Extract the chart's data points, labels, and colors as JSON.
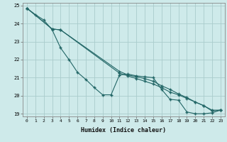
{
  "xlabel": "Humidex (Indice chaleur)",
  "ylabel": "",
  "xlim": [
    -0.5,
    23.5
  ],
  "ylim": [
    18.85,
    25.15
  ],
  "yticks": [
    19,
    20,
    21,
    22,
    23,
    24,
    25
  ],
  "xticks": [
    0,
    1,
    2,
    3,
    4,
    5,
    6,
    7,
    8,
    9,
    10,
    11,
    12,
    13,
    14,
    15,
    16,
    17,
    18,
    19,
    20,
    21,
    22,
    23
  ],
  "bg_color": "#ceeaea",
  "grid_color": "#aacccc",
  "line_color": "#226666",
  "line1_x": [
    0,
    1,
    2,
    3,
    4,
    5,
    6,
    7,
    8,
    9,
    10,
    11,
    12,
    13,
    14,
    15,
    16,
    17,
    18,
    19,
    20,
    21,
    22,
    23
  ],
  "line1_y": [
    24.85,
    24.5,
    24.2,
    23.65,
    22.65,
    22.0,
    21.3,
    20.9,
    20.45,
    20.05,
    20.05,
    21.15,
    21.2,
    21.1,
    21.05,
    21.0,
    20.35,
    19.8,
    19.75,
    19.1,
    19.0,
    19.0,
    19.05,
    19.2
  ],
  "line2_x": [
    0,
    3,
    4,
    11,
    12,
    13,
    14,
    15,
    16,
    17,
    18,
    19,
    20,
    21,
    22,
    23
  ],
  "line2_y": [
    24.85,
    23.7,
    23.65,
    21.25,
    21.1,
    20.95,
    20.8,
    20.65,
    20.45,
    20.2,
    20.05,
    19.85,
    19.65,
    19.45,
    19.15,
    19.2
  ],
  "line3_x": [
    0,
    3,
    4,
    11,
    12,
    13,
    14,
    15,
    16,
    17,
    18,
    19,
    20,
    21,
    22,
    23
  ],
  "line3_y": [
    24.85,
    23.7,
    23.65,
    21.35,
    21.15,
    21.05,
    20.95,
    20.8,
    20.55,
    20.35,
    20.1,
    19.9,
    19.65,
    19.45,
    19.2,
    19.2
  ]
}
